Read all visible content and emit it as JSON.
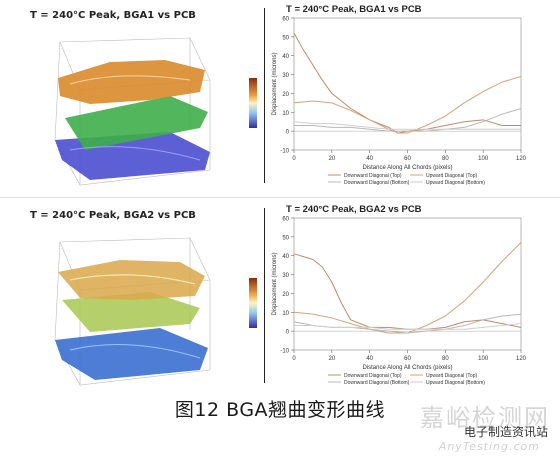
{
  "caption": "图12 BGA翘曲变形曲线",
  "watermark": {
    "brand": "嘉峪检测网",
    "account": "电子制造资讯站",
    "url": "AnyTesting.com"
  },
  "panels": [
    {
      "title_3d": "T = 240°C Peak, BGA1 vs PCB",
      "colors": {
        "top_surface": "#d9892a",
        "pcb_surface": "#3fae4a",
        "bottom_surface": "#4b4fd0"
      }
    },
    {
      "title_3d": "T = 240°C Peak, BGA2 vs PCB",
      "colors": {
        "top_surface": "#d9a84a",
        "pcb_surface": "#a8c850",
        "bottom_surface": "#3a6fd0"
      }
    }
  ],
  "chart_data": [
    {
      "type": "line",
      "title": "T = 240°C Peak, BGA1 vs PCB",
      "xlabel": "Distance Along All Chords (pixels)",
      "ylabel": "Displacement (microns)",
      "xlim": [
        0,
        120
      ],
      "ylim": [
        -10,
        60
      ],
      "xticks": [
        0,
        20,
        40,
        60,
        80,
        100,
        120
      ],
      "yticks": [
        -10,
        0,
        10,
        20,
        30,
        40,
        50,
        60
      ],
      "legend": [
        "Downward Diagonal (Top)",
        "Upward Diagonal (Top)",
        "Downward Diagonal (Bottom)",
        "Upward Diagonal (Bottom)"
      ],
      "series": [
        {
          "name": "Downward Diagonal (Top)",
          "color": "#c08a6a",
          "x": [
            0,
            5,
            10,
            15,
            20,
            30,
            40,
            50,
            55,
            60,
            70,
            80,
            90,
            100,
            110,
            120
          ],
          "y": [
            52,
            43,
            35,
            27,
            20,
            12,
            6,
            2,
            -1,
            0,
            1,
            3,
            5,
            6,
            3,
            3
          ]
        },
        {
          "name": "Upward Diagonal (Top)",
          "color": "#d4a27a",
          "x": [
            0,
            10,
            20,
            30,
            40,
            50,
            55,
            60,
            70,
            80,
            90,
            100,
            110,
            120
          ],
          "y": [
            15,
            16,
            15,
            11,
            6,
            1,
            -1,
            -1,
            3,
            8,
            15,
            21,
            26,
            29
          ]
        },
        {
          "name": "Downward Diagonal (Bottom)",
          "color": "#b8b8b8",
          "x": [
            0,
            10,
            20,
            30,
            40,
            50,
            60,
            70,
            80,
            90,
            100,
            110,
            120
          ],
          "y": [
            3,
            3,
            2,
            2,
            1,
            0,
            0,
            0,
            1,
            2,
            5,
            9,
            12
          ]
        },
        {
          "name": "Upward Diagonal (Bottom)",
          "color": "#cfcfcf",
          "x": [
            0,
            10,
            20,
            30,
            40,
            50,
            60,
            70,
            80,
            90,
            100,
            110,
            120
          ],
          "y": [
            5,
            4,
            4,
            3,
            2,
            1,
            1,
            1,
            1,
            1,
            1,
            1,
            1
          ]
        }
      ]
    },
    {
      "type": "line",
      "title": "T = 240°C Peak, BGA2 vs PCB",
      "xlabel": "Distance Along All Chords (pixels)",
      "ylabel": "Displacement (microns)",
      "xlim": [
        0,
        120
      ],
      "ylim": [
        -10,
        60
      ],
      "xticks": [
        0,
        20,
        40,
        60,
        80,
        100,
        120
      ],
      "yticks": [
        -10,
        0,
        10,
        20,
        30,
        40,
        50,
        60
      ],
      "legend": [
        "Downward Diagonal (Top)",
        "Upward Diagonal (Top)",
        "Downward Diagonal (Bottom)",
        "Upward Diagonal (Bottom)"
      ],
      "series": [
        {
          "name": "Downward Diagonal (Top)",
          "color": "#c08a6a",
          "x": [
            0,
            10,
            15,
            20,
            25,
            30,
            40,
            50,
            60,
            70,
            80,
            90,
            100,
            110,
            120
          ],
          "y": [
            41,
            38,
            34,
            26,
            15,
            6,
            2,
            2,
            1,
            1,
            2,
            5,
            6,
            4,
            2
          ]
        },
        {
          "name": "Upward Diagonal (Top)",
          "color": "#d4a27a",
          "x": [
            0,
            10,
            20,
            30,
            40,
            50,
            60,
            70,
            80,
            90,
            100,
            110,
            120
          ],
          "y": [
            10,
            9,
            7,
            4,
            1,
            -1,
            -1,
            3,
            8,
            16,
            26,
            37,
            47
          ]
        },
        {
          "name": "Downward Diagonal (Bottom)",
          "color": "#b8b8b8",
          "x": [
            0,
            10,
            20,
            30,
            40,
            50,
            60,
            70,
            80,
            90,
            100,
            110,
            120
          ],
          "y": [
            5,
            3,
            2,
            2,
            1,
            0,
            -1,
            0,
            1,
            3,
            6,
            8,
            9
          ]
        },
        {
          "name": "Upward Diagonal (Bottom)",
          "color": "#cfcfcf",
          "x": [
            0,
            10,
            20,
            30,
            40,
            50,
            60,
            70,
            80,
            90,
            100,
            110,
            120
          ],
          "y": [
            3,
            3,
            2,
            2,
            2,
            1,
            1,
            1,
            1,
            1,
            2,
            3,
            4
          ]
        }
      ]
    }
  ]
}
